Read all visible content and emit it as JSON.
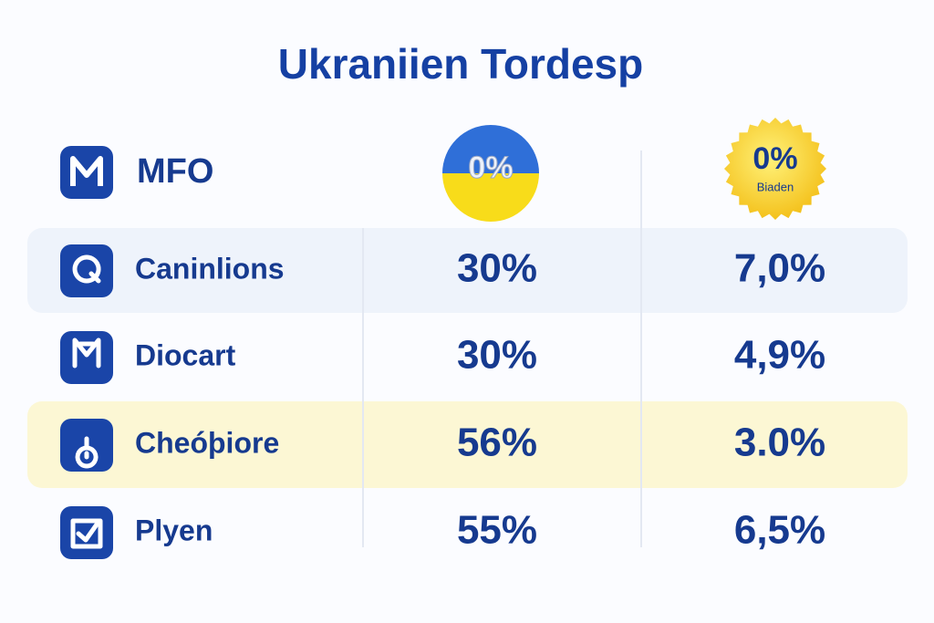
{
  "title": "Ukraniien Tordesp",
  "header": {
    "label": "MFO",
    "badge_1": "0%",
    "badge_2": {
      "value": "0%",
      "caption": "Biaden"
    }
  },
  "table": {
    "rows": [
      [
        "Caninlions",
        "30%",
        "7,0%"
      ],
      [
        "Diocart",
        "30%",
        "4,9%"
      ],
      [
        "Cheóþiore",
        "56%",
        "3.0%"
      ],
      [
        "Plyen",
        "55%",
        "6,5%"
      ]
    ]
  }
}
